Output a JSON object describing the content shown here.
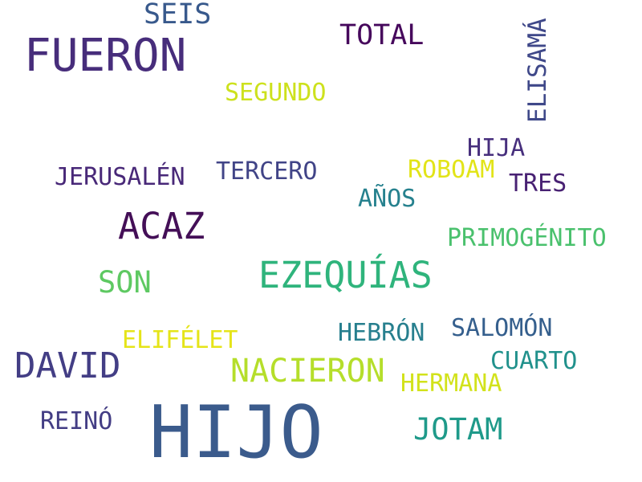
{
  "words": [
    {
      "text": "HIJO",
      "color": "#3b5b8c"
    },
    {
      "text": "FUERON",
      "color": "#472d7b"
    },
    {
      "text": "EZEQUÍAS",
      "color": "#2fb47c"
    },
    {
      "text": "ACAZ",
      "color": "#440f57"
    },
    {
      "text": "DAVID",
      "color": "#433e85"
    },
    {
      "text": "NACIERON",
      "color": "#b5de2b"
    },
    {
      "text": "SON",
      "color": "#5ec962"
    },
    {
      "text": "JOTAM",
      "color": "#1f9a8a"
    },
    {
      "text": "TOTAL",
      "color": "#46085c"
    },
    {
      "text": "SEIS",
      "color": "#38598c"
    },
    {
      "text": "ELISAMÁ",
      "color": "#3f4889"
    },
    {
      "text": "SEGUNDO",
      "color": "#cde11d"
    },
    {
      "text": "HIJA",
      "color": "#472f7d"
    },
    {
      "text": "ROBOAM",
      "color": "#e2e418"
    },
    {
      "text": "TERCERO",
      "color": "#414487"
    },
    {
      "text": "JERUSALÉN",
      "color": "#482878"
    },
    {
      "text": "TRES",
      "color": "#482173"
    },
    {
      "text": "AÑOS",
      "color": "#26818e"
    },
    {
      "text": "PRIMOGÉNITO",
      "color": "#4ac16d"
    },
    {
      "text": "ELIFÉLET",
      "color": "#e5e419"
    },
    {
      "text": "HEBRÓN",
      "color": "#277f8e"
    },
    {
      "text": "SALOMÓN",
      "color": "#355f8d"
    },
    {
      "text": "CUARTO",
      "color": "#21918c"
    },
    {
      "text": "HERMANA",
      "color": "#d2e21b"
    },
    {
      "text": "REINÓ",
      "color": "#433d84"
    }
  ]
}
